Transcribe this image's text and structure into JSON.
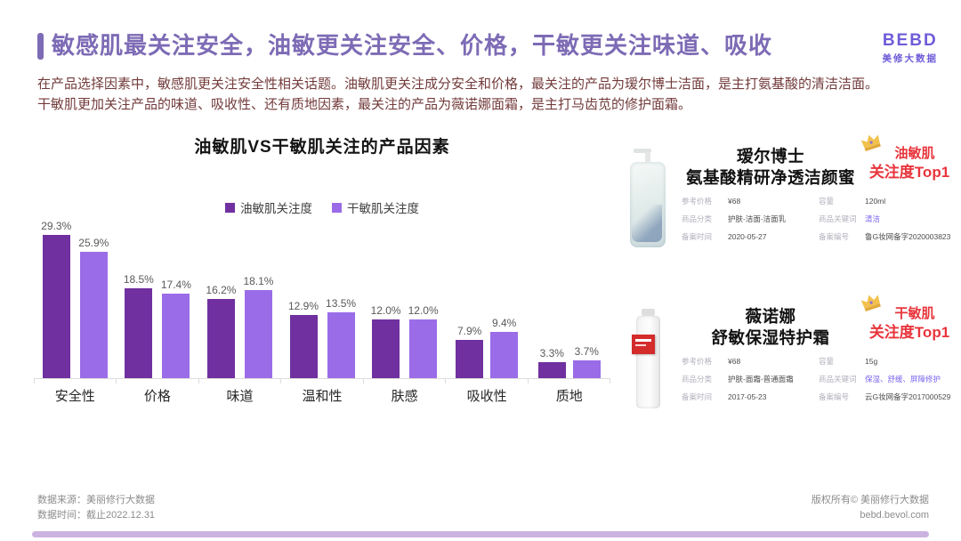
{
  "header": {
    "title": "敏感肌最关注安全，油敏更关注安全、价格，干敏更关注味道、吸收",
    "intro": "在产品选择因素中，敏感肌更关注安全性相关话题。油敏肌更关注成分安全和价格，最关注的产品为瑷尔博士洁面，是主打氨基酸的清洁洁面。干敏肌更加关注产品的味道、吸收性、还有质地因素，最关注的产品为薇诺娜面霜，是主打马齿苋的修护面霜。"
  },
  "logo": {
    "brand": "BEBD",
    "sub": "美修大数据"
  },
  "colors": {
    "title_purple": "#7D6BB5",
    "intro_maroon": "#733B3B",
    "series1_purple": "#7030A0",
    "series2_purple": "#9B6CE8",
    "badge_red": "#E8353C",
    "keyword_purple": "#7B68EE",
    "bottom_bar_lavender": "#CBB2E0"
  },
  "chart_data": {
    "type": "bar",
    "title": "油敏肌VS干敏肌关注的产品因素",
    "categories": [
      "安全性",
      "价格",
      "味道",
      "温和性",
      "肤感",
      "吸收性",
      "质地"
    ],
    "series": [
      {
        "name": "油敏肌关注度",
        "color": "#7030A0",
        "values": [
          29.3,
          18.5,
          16.2,
          12.9,
          12.0,
          7.9,
          3.3
        ]
      },
      {
        "name": "干敏肌关注度",
        "color": "#9B6CE8",
        "values": [
          25.9,
          17.4,
          18.1,
          13.5,
          12.0,
          9.4,
          3.7
        ]
      }
    ],
    "value_suffix": "%",
    "ylim": [
      0,
      32
    ],
    "legend_position": "top",
    "grid": false,
    "xlabel": "",
    "ylabel": ""
  },
  "products": [
    {
      "name_line1": "瑷尔博士",
      "name_line2": "氨基酸精研净透洁颜蜜",
      "badge_line1": "油敏肌",
      "badge_line2": "关注度Top1",
      "details_left": [
        {
          "label": "参考价格",
          "value": "¥68"
        },
        {
          "label": "商品分类",
          "value": "护肤-洁面-洁面乳"
        },
        {
          "label": "备案时间",
          "value": "2020-05-27"
        }
      ],
      "details_right": [
        {
          "label": "容量",
          "value": "120ml"
        },
        {
          "label": "商品关键词",
          "value": "清洁",
          "highlight": true
        },
        {
          "label": "备案编号",
          "value": "鲁G妆网备字2020003823"
        }
      ]
    },
    {
      "name_line1": "薇诺娜",
      "name_line2": "舒敏保湿特护霜",
      "badge_line1": "干敏肌",
      "badge_line2": "关注度Top1",
      "details_left": [
        {
          "label": "参考价格",
          "value": "¥68"
        },
        {
          "label": "商品分类",
          "value": "护肤-面霜-普通面霜"
        },
        {
          "label": "备案时间",
          "value": "2017-05-23"
        }
      ],
      "details_right": [
        {
          "label": "容量",
          "value": "15g"
        },
        {
          "label": "商品关键词",
          "value": "保湿、舒缓、屏障修护",
          "highlight": true
        },
        {
          "label": "备案编号",
          "value": "云G妆网备字2017000529"
        }
      ]
    }
  ],
  "footer": {
    "source_line": "数据来源：美丽修行大数据",
    "time_line": "数据时间：截止2022.12.31",
    "copyright_line": "版权所有© 美丽修行大数据",
    "site_line": "bebd.bevol.com"
  }
}
